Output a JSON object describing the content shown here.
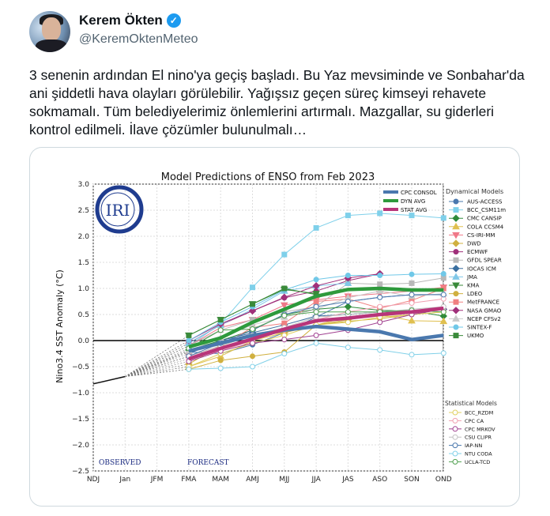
{
  "tweet": {
    "author_name": "Kerem Ökten",
    "verified_icon": "verified-badge-icon",
    "handle": "@KeremOktenMeteo",
    "text": "3 senenin ardından El nino'ya geçiş başladı. Bu Yaz mevsiminde ve Sonbahar'da ani şiddetli hava olayları görülebilir. Yağışsız geçen süreç kimseyi rehavete sokmamalı. Tüm belediyelerimiz önlemlerini artırmalı. Mazgallar, su giderleri kontrol edilmeli. İlave çözümler bulunulmalı…"
  },
  "chart_data": {
    "type": "line",
    "title": "Model Predictions of ENSO from Feb 2023",
    "ylabel": "Nino3.4 SST Anomaly (°C)",
    "xlabel": "",
    "ylim": [
      -2.5,
      3.0
    ],
    "yticks": [
      "3.0",
      "2.5",
      "2.0",
      "1.5",
      "1.0",
      "0.5",
      "0.0",
      "−0.5",
      "−1.0",
      "−1.5",
      "−2.0",
      "−2.5"
    ],
    "categories": [
      "NDJ",
      "Jan",
      "JFM",
      "FMA",
      "MAM",
      "AMJ",
      "MJJ",
      "JJA",
      "JAS",
      "ASO",
      "SON",
      "OND"
    ],
    "grid": true,
    "logo_text": "IRI",
    "annotations": {
      "observed": "OBSERVED",
      "forecast": "FORECAST"
    },
    "observed": {
      "x": [
        "NDJ",
        "Jan"
      ],
      "values": [
        -0.83,
        -0.69
      ]
    },
    "forecast_start": "FMA",
    "averages": [
      {
        "name": "CPC CONSOL",
        "color": "#4a78ae",
        "values": [
          -0.2,
          -0.05,
          0.1,
          0.2,
          0.27,
          0.22,
          0.17,
          0.02,
          0.1
        ]
      },
      {
        "name": "DYN AVG",
        "color": "#2e9a3c",
        "values": [
          -0.12,
          0.05,
          0.35,
          0.6,
          0.85,
          0.98,
          1.0,
          0.97,
          0.97
        ]
      },
      {
        "name": "STAT AVG",
        "color": "#b8357a",
        "values": [
          -0.35,
          -0.15,
          0.03,
          0.22,
          0.38,
          0.43,
          0.5,
          0.55,
          0.62
        ]
      }
    ],
    "dynamical_title": "Dynamical Models",
    "dynamical": [
      {
        "name": "AUS-ACCESS",
        "color": "#4a78ae",
        "marker": "circle",
        "values": [
          -0.22,
          -0.25,
          -0.08,
          0.15,
          0.45,
          0.75,
          0.83,
          0.88,
          0.88
        ]
      },
      {
        "name": "BCC_CSM11m",
        "color": "#7fd0ea",
        "marker": "square",
        "values": [
          -0.1,
          0.32,
          1.02,
          1.65,
          2.16,
          2.4,
          2.44,
          2.4,
          2.35
        ]
      },
      {
        "name": "CMC CANSIP",
        "color": "#2e8a3a",
        "marker": "diamond",
        "values": [
          -0.18,
          0.0,
          0.2,
          0.5,
          0.6,
          0.65,
          0.58,
          0.57,
          0.47
        ]
      },
      {
        "name": "COLA CCSM4",
        "color": "#e0c050",
        "marker": "tri",
        "values": [
          -0.5,
          -0.3,
          0.0,
          0.15,
          0.3,
          0.45,
          0.5,
          0.38,
          0.37
        ]
      },
      {
        "name": "CS-IRI-MM",
        "color": "#f07888",
        "marker": "trid",
        "values": [
          -0.1,
          0.25,
          0.4,
          0.68,
          0.78,
          0.85,
          0.9,
          0.95,
          1.02
        ]
      },
      {
        "name": "DWD",
        "color": "#d0b040",
        "marker": "diamond",
        "values": [
          -0.45,
          -0.1,
          0.1,
          0.15,
          0.3,
          0.4,
          0.5,
          0.55,
          0.6
        ]
      },
      {
        "name": "ECMWF",
        "color": "#a0307a",
        "marker": "circle",
        "values": [
          -0.05,
          0.3,
          0.57,
          0.82,
          0.95,
          1.15,
          1.28
        ]
      },
      {
        "name": "GFDL SPEAR",
        "color": "#b8b8b8",
        "marker": "square",
        "values": [
          -0.1,
          0.2,
          0.4,
          0.55,
          0.65,
          1.1,
          1.08,
          1.1,
          1.2
        ]
      },
      {
        "name": "IOCAS ICM",
        "color": "#3a6fa0",
        "marker": "diamond",
        "values": [
          -0.25,
          0.0,
          0.15,
          0.3,
          0.47,
          0.5,
          0.55,
          0.57,
          0.6
        ]
      },
      {
        "name": "JMA",
        "color": "#80c8e8",
        "marker": "tri",
        "values": [
          -0.05,
          0.3,
          0.6,
          0.95,
          1.05,
          1.1
        ]
      },
      {
        "name": "KMA",
        "color": "#3a8a3a",
        "marker": "trid",
        "values": [
          0.1,
          0.4,
          0.7,
          0.98,
          0.9
        ]
      },
      {
        "name": "LDEO",
        "color": "#d0b040",
        "marker": "circle",
        "values": [
          -0.55,
          -0.38,
          -0.3,
          -0.22,
          0.3,
          0.37,
          0.42,
          0.5,
          0.55
        ]
      },
      {
        "name": "MetFRANCE",
        "color": "#f08080",
        "marker": "square",
        "values": [
          -0.3,
          -0.1,
          0.25,
          0.33,
          0.75,
          0.8,
          0.62,
          0.77,
          1.0
        ]
      },
      {
        "name": "NASA GMAO",
        "color": "#a0307a",
        "marker": "diamond",
        "values": [
          0.0,
          0.32,
          0.57,
          0.83,
          1.05,
          1.2,
          1.28
        ]
      },
      {
        "name": "NCEP CFSv2",
        "color": "#c8c8c8",
        "marker": "tri",
        "values": [
          -0.2,
          0.05,
          0.3,
          0.45,
          0.6,
          0.82,
          0.95,
          0.85,
          0.9
        ]
      },
      {
        "name": "SINTEX-F",
        "color": "#70c8e8",
        "marker": "circle",
        "values": [
          0.0,
          0.35,
          0.65,
          0.97,
          1.17,
          1.25,
          1.25,
          1.27,
          1.28
        ]
      },
      {
        "name": "UKMO",
        "color": "#3a8a3a",
        "marker": "square",
        "values": [
          0.1,
          0.4,
          0.7,
          1.0,
          0.88
        ]
      }
    ],
    "statistical_title": "Statistical Models",
    "statistical": [
      {
        "name": "BCC_RZDM",
        "color": "#e0d060",
        "values": [
          -0.5,
          -0.25,
          -0.05,
          0.1,
          0.3,
          0.35,
          0.45,
          0.5,
          0.55
        ]
      },
      {
        "name": "CPC CA",
        "color": "#f0a0b0",
        "values": [
          -0.35,
          -0.2,
          0.0,
          0.2,
          0.4,
          0.55,
          0.65,
          0.72,
          0.8
        ]
      },
      {
        "name": "CPC MRKOV",
        "color": "#a04090",
        "values": [
          -0.4,
          -0.2,
          -0.05,
          0.02,
          0.1,
          0.2,
          0.35,
          0.5,
          0.6
        ]
      },
      {
        "name": "CSU CLIPR",
        "color": "#c0c0c0",
        "values": [
          -0.3,
          -0.1,
          0.1,
          0.25,
          0.45,
          0.5,
          0.55,
          0.6,
          0.65
        ]
      },
      {
        "name": "IAP-NN",
        "color": "#4a78ae",
        "values": [
          -0.3,
          -0.05,
          0.2,
          0.5,
          0.65,
          0.75,
          0.83,
          0.88,
          0.88
        ]
      },
      {
        "name": "NTU CODA",
        "color": "#80d0e8",
        "values": [
          -0.55,
          -0.53,
          -0.5,
          -0.25,
          -0.05,
          -0.13,
          -0.18,
          -0.27,
          -0.24
        ]
      },
      {
        "name": "UCLA-TCD",
        "color": "#50a050",
        "values": [
          -0.15,
          0.2,
          0.22,
          0.48,
          0.55,
          0.55,
          0.55,
          0.58,
          0.55
        ]
      }
    ]
  }
}
